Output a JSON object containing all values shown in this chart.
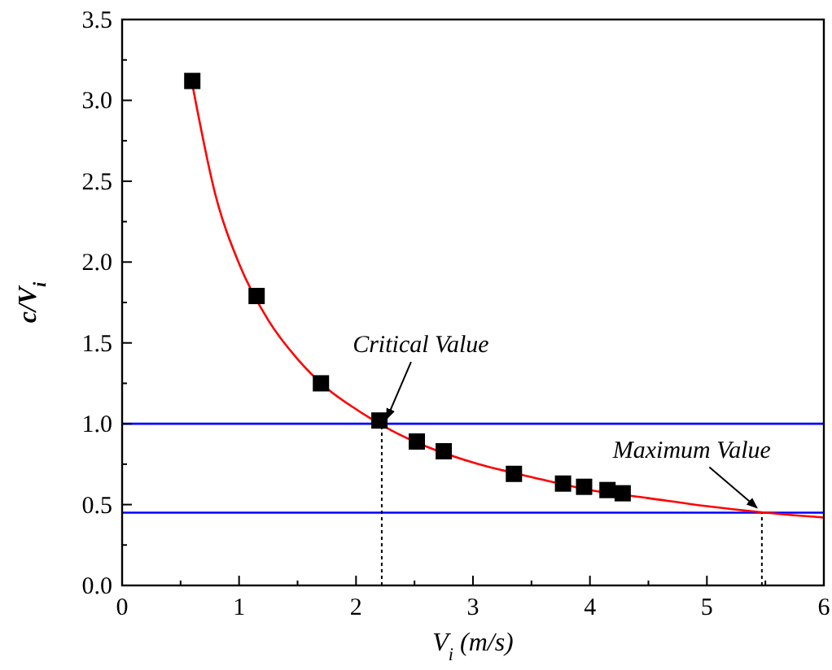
{
  "chart_data": {
    "type": "scatter",
    "xlabel": "V$_{i}$ (m/s)",
    "ylabel": "c/V$_{i}$",
    "xlim": [
      0,
      6
    ],
    "ylim": [
      0,
      3.5
    ],
    "xticks": [
      0,
      {
        "value": 0.5,
        "label": null
      },
      1,
      {
        "value": 1.5,
        "label": null
      },
      2,
      {
        "value": 2.5,
        "label": null
      },
      3,
      {
        "value": 3.5,
        "label": null
      },
      4,
      {
        "value": 4.5,
        "label": null
      },
      5,
      {
        "value": 5.5,
        "label": null
      },
      6
    ],
    "yticks": [
      {
        "value": 0,
        "label": "0.0"
      },
      {
        "value": 0.25,
        "label": null
      },
      {
        "value": 0.5,
        "label": "0.5"
      },
      {
        "value": 0.75,
        "label": null
      },
      {
        "value": 1,
        "label": "1.0"
      },
      {
        "value": 1.25,
        "label": null
      },
      {
        "value": 1.5,
        "label": "1.5"
      },
      {
        "value": 1.75,
        "label": null
      },
      {
        "value": 2,
        "label": "2.0"
      },
      {
        "value": 2.25,
        "label": null
      },
      {
        "value": 2.5,
        "label": "2.5"
      },
      {
        "value": 2.75,
        "label": null
      },
      {
        "value": 3,
        "label": "3.0"
      },
      {
        "value": 3.25,
        "label": null
      },
      {
        "value": 3.5,
        "label": "3.5"
      }
    ],
    "grid": false,
    "series": [
      {
        "type": "line",
        "color": "#ff0000",
        "line_style": "solid",
        "x": [
          0.6,
          0.8,
          1.0,
          1.25,
          1.5,
          1.75,
          2.0,
          2.3,
          2.5,
          3.0,
          3.5,
          4.0,
          4.5,
          5.0,
          5.5,
          6.0
        ],
        "values": [
          3.1,
          2.41,
          1.99,
          1.64,
          1.4,
          1.22,
          1.09,
          0.96,
          0.89,
          0.76,
          0.67,
          0.59,
          0.54,
          0.49,
          0.45,
          0.42
        ]
      },
      {
        "color": "#000000",
        "marker": "square",
        "x": [
          0.6,
          1.15,
          1.7,
          2.2,
          2.52,
          2.75,
          3.35,
          3.77,
          3.95,
          4.15,
          4.28
        ],
        "values": [
          3.12,
          1.79,
          1.25,
          1.02,
          0.89,
          0.83,
          0.69,
          0.63,
          0.61,
          0.59,
          0.57
        ]
      }
    ],
    "ref_lines": [
      {
        "axis": "y",
        "value": 1.0,
        "color": "#0000ff",
        "line_style": "solid"
      },
      {
        "axis": "y",
        "value": 0.45,
        "color": "#0000ff",
        "line_style": "solid"
      },
      {
        "axis": "x",
        "value": 2.22,
        "color": "#000000",
        "line_style": "dotted"
      },
      {
        "axis": "x",
        "value": 5.47,
        "color": "#000000",
        "line_style": "dotted"
      }
    ],
    "annotations": [
      {
        "text": "Critical Value",
        "x": 2.22,
        "y": 1.0
      },
      {
        "text": "Maximum Value",
        "x": 5.47,
        "y": 0.45
      }
    ]
  }
}
